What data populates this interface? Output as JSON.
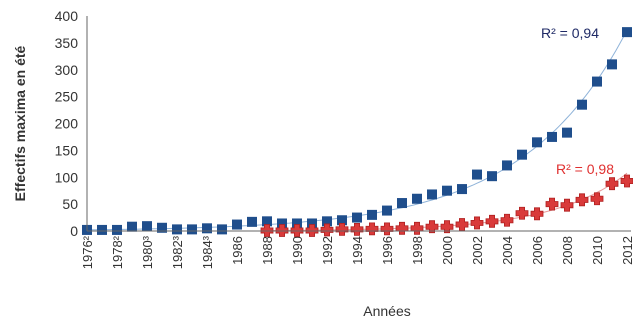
{
  "chart_data": {
    "type": "scatter",
    "xlabel": "Années",
    "ylabel": "Effectifs maxima en été",
    "ylim": [
      0,
      400
    ],
    "yticks": [
      "0",
      "50",
      "100",
      "150",
      "200",
      "250",
      "300",
      "350",
      "400"
    ],
    "x": [
      1976,
      1977,
      1978,
      1979,
      1980,
      1981,
      1982,
      1983,
      1984,
      1985,
      1986,
      1987,
      1988,
      1989,
      1990,
      1991,
      1992,
      1993,
      1994,
      1995,
      1996,
      1997,
      1998,
      1999,
      2000,
      2001,
      2002,
      2003,
      2004,
      2005,
      2006,
      2007,
      2008,
      2009,
      2010,
      2011,
      2012
    ],
    "xticks": [
      "1976²",
      "1978²",
      "1980³",
      "1982³",
      "1984³",
      "1986",
      "1988",
      "1990",
      "1992",
      "1994",
      "1996",
      "1998",
      "2000",
      "2002",
      "2004",
      "2006",
      "2008",
      "2010",
      "2012"
    ],
    "grid": false,
    "series": [
      {
        "marker": "square",
        "color": "#1f4e8c",
        "trend_color": "#8fb3d9",
        "x": [
          1976,
          1977,
          1978,
          1979,
          1980,
          1981,
          1982,
          1983,
          1984,
          1985,
          1986,
          1987,
          1988,
          1989,
          1990,
          1991,
          1992,
          1993,
          1994,
          1995,
          1996,
          1997,
          1998,
          1999,
          2000,
          2001,
          2002,
          2003,
          2004,
          2005,
          2006,
          2007,
          2008,
          2009,
          2010,
          2011,
          2012
        ],
        "values": [
          2,
          2,
          2,
          8,
          9,
          6,
          3,
          3,
          5,
          3,
          12,
          17,
          18,
          14,
          14,
          14,
          18,
          20,
          25,
          30,
          38,
          52,
          60,
          68,
          75,
          78,
          105,
          102,
          122,
          142,
          165,
          175,
          183,
          235,
          278,
          310,
          370
        ],
        "r2_label": "R² = 0,94",
        "r2_color": "#1f2a66"
      },
      {
        "marker": "cross",
        "color": "#d93a3a",
        "trend_color": "#e89a9a",
        "x": [
          1988,
          1989,
          1990,
          1991,
          1992,
          1993,
          1994,
          1995,
          1996,
          1997,
          1998,
          1999,
          2000,
          2001,
          2002,
          2003,
          2004,
          2005,
          2006,
          2007,
          2008,
          2009,
          2010,
          2011,
          2012
        ],
        "values": [
          1,
          1,
          1,
          1,
          2,
          3,
          3,
          4,
          4,
          5,
          5,
          8,
          8,
          12,
          15,
          18,
          20,
          33,
          32,
          50,
          48,
          58,
          60,
          88,
          93
        ],
        "r2_label": "R² = 0,98",
        "r2_color": "#e03030"
      }
    ]
  }
}
